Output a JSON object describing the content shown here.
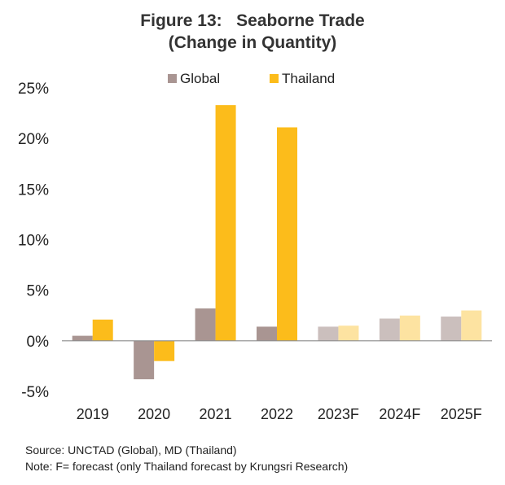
{
  "chart_data": {
    "type": "bar",
    "title": "Figure 13:   Seaborne Trade",
    "subtitle": "(Change in Quantity)",
    "categories": [
      "2019",
      "2020",
      "2021",
      "2022",
      "2023F",
      "2024F",
      "2025F"
    ],
    "forecast_start_index": 4,
    "series": [
      {
        "name": "Global",
        "values": [
          0.5,
          -3.8,
          3.2,
          1.4,
          1.4,
          2.2,
          2.4
        ]
      },
      {
        "name": "Thailand",
        "values": [
          2.1,
          -2.0,
          23.3,
          21.1,
          1.5,
          2.5,
          3.0
        ]
      }
    ],
    "ylim": [
      -5,
      25
    ],
    "yticks": [
      "-5%",
      "0%",
      "5%",
      "10%",
      "15%",
      "20%",
      "25%"
    ],
    "xlabel": "",
    "ylabel": "",
    "legend_position": "top-center",
    "grid": false
  },
  "colors": {
    "global": "#a99592",
    "thailand": "#fcbc1b",
    "global_forecast": "#cbbfbd",
    "thailand_forecast": "#fde3a1",
    "axis": "#8c8c8c"
  },
  "footer": {
    "source": "Source: UNCTAD (Global), MD (Thailand)",
    "note": "Note: F= forecast (only Thailand forecast by Krungsri Research)"
  }
}
